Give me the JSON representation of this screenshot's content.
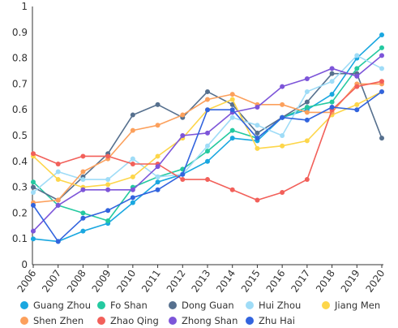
{
  "chart_data": {
    "type": "line",
    "title": "",
    "xlabel": "",
    "ylabel": "",
    "ylim": [
      0,
      1
    ],
    "y_ticks": [
      "0",
      "0.1",
      "0.2",
      "0.3",
      "0.4",
      "0.5",
      "0.6",
      "0.7",
      "0.8",
      "0.9",
      "1"
    ],
    "x": [
      "2006",
      "2007",
      "2008",
      "2009",
      "2010",
      "2011",
      "2012",
      "2013",
      "2014",
      "2015",
      "2016",
      "2017",
      "2018",
      "2019",
      "2020"
    ],
    "grid": false,
    "legend_position": "bottom",
    "series": [
      {
        "name": "Guang Zhou",
        "color": "#1aa7e0",
        "values": [
          0.1,
          0.09,
          0.13,
          0.16,
          0.24,
          0.32,
          0.35,
          0.4,
          0.49,
          0.48,
          0.57,
          0.6,
          0.66,
          0.8,
          0.89
        ]
      },
      {
        "name": "Fo Shan",
        "color": "#24c9a0",
        "values": [
          0.32,
          0.23,
          0.2,
          0.17,
          0.3,
          0.34,
          0.37,
          0.44,
          0.52,
          0.49,
          0.57,
          0.61,
          0.63,
          0.76,
          0.84
        ]
      },
      {
        "name": "Dong Guan",
        "color": "#56708e",
        "values": [
          0.3,
          0.25,
          0.34,
          0.43,
          0.58,
          0.62,
          0.57,
          0.67,
          0.62,
          0.51,
          0.57,
          0.63,
          0.74,
          0.74,
          0.49
        ]
      },
      {
        "name": "Hui Zhou",
        "color": "#9fdcf7",
        "values": [
          0.28,
          0.36,
          0.33,
          0.33,
          0.41,
          0.34,
          0.35,
          0.46,
          0.57,
          0.54,
          0.5,
          0.67,
          0.71,
          0.81,
          0.76
        ]
      },
      {
        "name": "Jiang Men",
        "color": "#fdd64a",
        "values": [
          0.42,
          0.33,
          0.3,
          0.31,
          0.34,
          0.42,
          0.49,
          0.6,
          0.64,
          0.45,
          0.46,
          0.48,
          0.58,
          0.62,
          0.67
        ]
      },
      {
        "name": "Shen Zhen",
        "color": "#fca05c",
        "values": [
          0.24,
          0.25,
          0.36,
          0.41,
          0.52,
          0.54,
          0.58,
          0.64,
          0.66,
          0.62,
          0.62,
          0.59,
          0.59,
          0.7,
          0.7
        ]
      },
      {
        "name": "Zhao Qing",
        "color": "#f2605a",
        "values": [
          0.43,
          0.39,
          0.42,
          0.42,
          0.39,
          0.39,
          0.33,
          0.33,
          0.29,
          0.25,
          0.28,
          0.33,
          0.6,
          0.69,
          0.71
        ]
      },
      {
        "name": "Zhong Shan",
        "color": "#7d55d9",
        "values": [
          0.13,
          0.23,
          0.29,
          0.29,
          0.29,
          0.38,
          0.5,
          0.51,
          0.59,
          0.61,
          0.69,
          0.72,
          0.76,
          0.73,
          0.81
        ]
      },
      {
        "name": "Zhu Hai",
        "color": "#3264de",
        "values": [
          0.23,
          0.09,
          0.18,
          0.21,
          0.26,
          0.29,
          0.35,
          0.6,
          0.6,
          0.49,
          0.57,
          0.56,
          0.61,
          0.6,
          0.67
        ]
      }
    ]
  }
}
